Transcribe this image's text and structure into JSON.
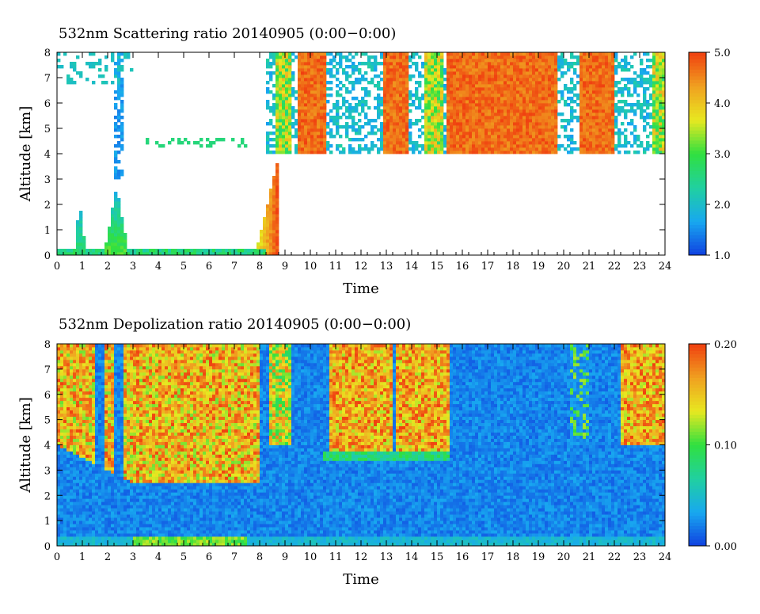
{
  "chart_data": [
    {
      "type": "heatmap",
      "title": "532nm Scattering ratio  20140905 (0:00−0:00)",
      "xlabel": "Time",
      "ylabel": "Altitude [km]",
      "xlim": [
        0,
        24
      ],
      "ylim": [
        0,
        8
      ],
      "x_ticks": [
        "0",
        "1",
        "2",
        "3",
        "4",
        "5",
        "6",
        "7",
        "8",
        "9",
        "10",
        "11",
        "12",
        "13",
        "14",
        "15",
        "16",
        "17",
        "18",
        "19",
        "20",
        "21",
        "22",
        "23",
        "24"
      ],
      "y_ticks": [
        "0",
        "1",
        "2",
        "3",
        "4",
        "5",
        "6",
        "7",
        "8"
      ],
      "colorbar": {
        "range": [
          1.0,
          5.0
        ],
        "ticks": [
          "1.0",
          "2.0",
          "3.0",
          "4.0",
          "5.0"
        ]
      },
      "colormap": [
        "#1040e0",
        "#18a8f0",
        "#20d0a0",
        "#30e040",
        "#e8e820",
        "#f0a020",
        "#f04010"
      ],
      "features": [
        {
          "name": "low aerosol plume",
          "t": [
            0.7,
            1.1
          ],
          "top_km": 2.1,
          "peak": 3.0
        },
        {
          "name": "low aerosol plume",
          "t": [
            1.9,
            2.8
          ],
          "top_km": 2.7,
          "peak": 3.2
        },
        {
          "name": "boundary layer rise",
          "t": [
            7.9,
            8.8
          ],
          "top_km": 3.8,
          "peak": 5.0
        },
        {
          "name": "cloud layer",
          "t": [
            8.3,
            24.0
          ],
          "base_km": 4.0,
          "top_km": 8.0,
          "peak": 5.0
        },
        {
          "name": "dense cloud",
          "t": [
            15.4,
            19.8
          ],
          "base_km": 3.9,
          "top_km": 8.0,
          "peak": 5.0
        }
      ]
    },
    {
      "type": "heatmap",
      "title": "532nm Depolization ratio  20140905 (0:00−0:00)",
      "xlabel": "Time",
      "ylabel": "Altitude [km]",
      "xlim": [
        0,
        24
      ],
      "ylim": [
        0,
        8
      ],
      "x_ticks": [
        "0",
        "1",
        "2",
        "3",
        "4",
        "5",
        "6",
        "7",
        "8",
        "9",
        "10",
        "11",
        "12",
        "13",
        "14",
        "15",
        "16",
        "17",
        "18",
        "19",
        "20",
        "21",
        "22",
        "23",
        "24"
      ],
      "y_ticks": [
        "0",
        "1",
        "2",
        "3",
        "4",
        "5",
        "6",
        "7",
        "8"
      ],
      "colorbar": {
        "range": [
          0.0,
          0.2
        ],
        "ticks": [
          "0.00",
          "0.10",
          "0.20"
        ]
      },
      "colormap": [
        "#1040e0",
        "#18a8f0",
        "#20d0a0",
        "#30e040",
        "#e8e820",
        "#f0a020",
        "#f04010"
      ],
      "features": [
        {
          "name": "high depolarization noise",
          "t": [
            0.0,
            8.0
          ],
          "base_km": 2.5,
          "top_km": 8.0,
          "level": 0.18
        },
        {
          "name": "near-surface dust",
          "t": [
            3.0,
            7.5
          ],
          "top_km": 0.4,
          "level": 0.12
        },
        {
          "name": "ice cloud",
          "t": [
            10.8,
            15.5
          ],
          "base_km": 3.7,
          "top_km": 8.0,
          "level": 0.2
        },
        {
          "name": "ice cloud",
          "t": [
            22.2,
            24.0
          ],
          "base_km": 4.0,
          "top_km": 8.0,
          "level": 0.18
        }
      ]
    }
  ]
}
